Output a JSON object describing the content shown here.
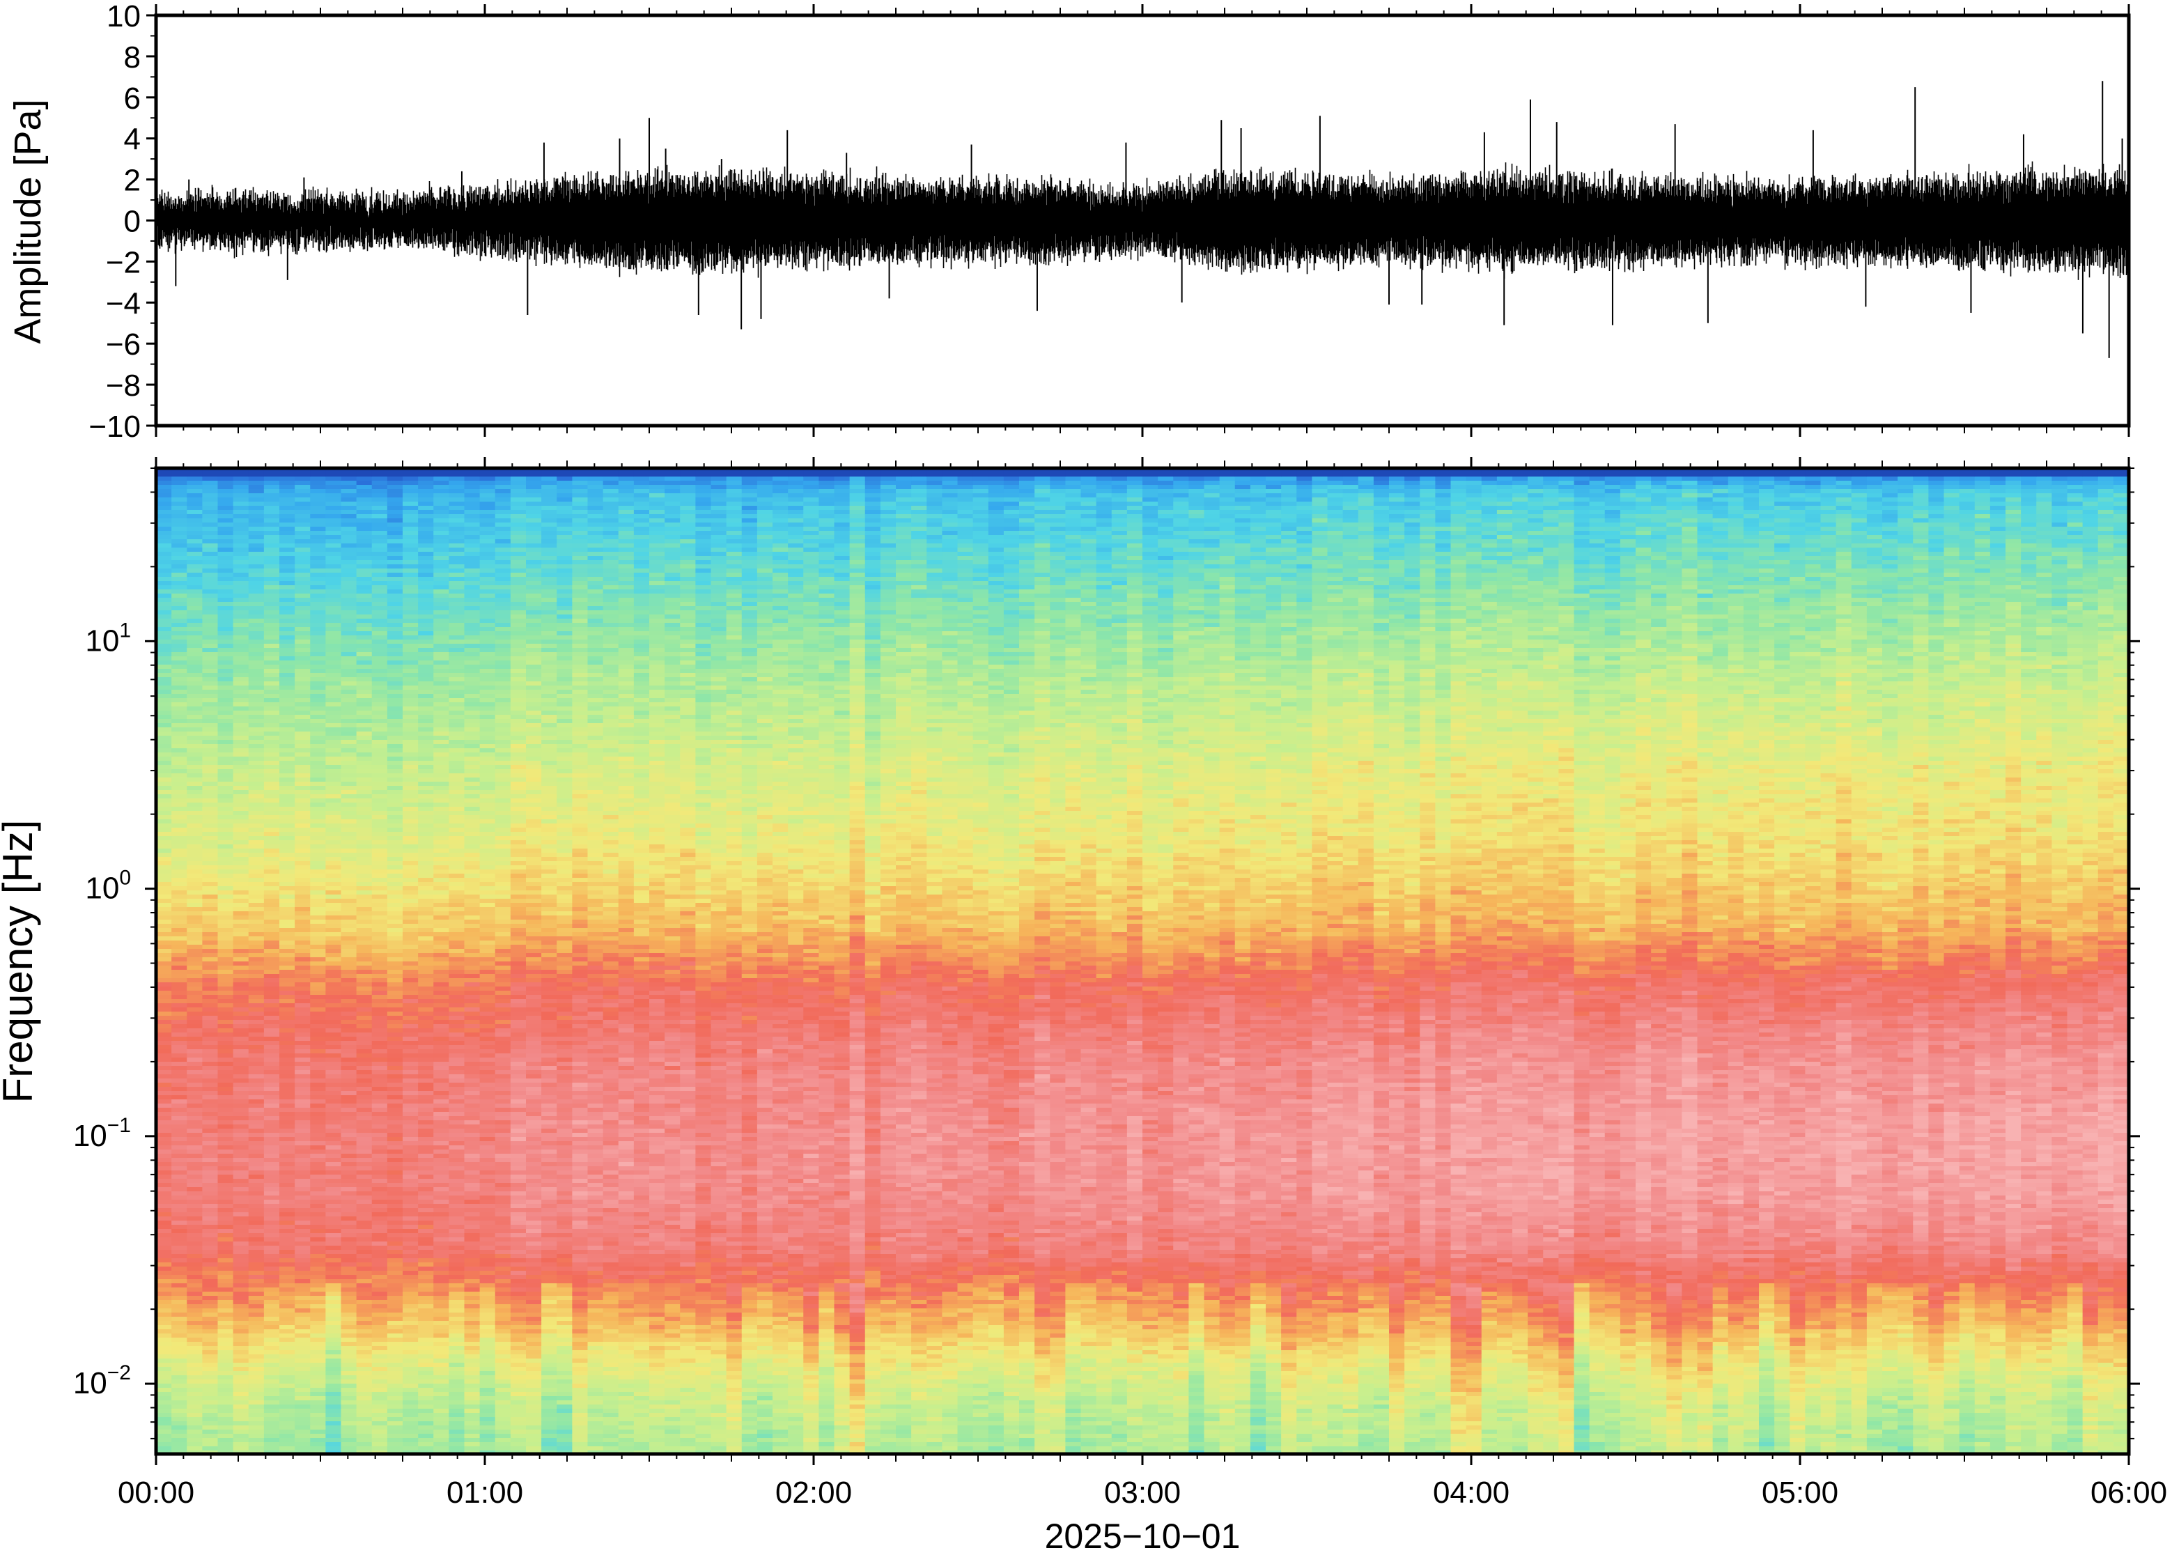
{
  "chart_data": [
    {
      "type": "line",
      "panel": "waveform",
      "ylabel": "Amplitude [Pa]",
      "ylim": [
        -10,
        10
      ],
      "yticks": [
        "10",
        "8",
        "6",
        "4",
        "2",
        "0",
        "−2",
        "−4",
        "−6",
        "−8",
        "−10"
      ],
      "ytick_values": [
        10,
        8,
        6,
        4,
        2,
        0,
        -2,
        -4,
        -6,
        -8,
        -10
      ],
      "xlim": [
        "00:00",
        "06:00"
      ],
      "line_color": "#000000",
      "envelope": {
        "x_hours": [
          0.0,
          0.25,
          0.5,
          0.75,
          1.0,
          1.25,
          1.5,
          1.75,
          2.0,
          2.25,
          2.5,
          2.75,
          3.0,
          3.25,
          3.5,
          3.75,
          4.0,
          4.25,
          4.5,
          4.75,
          5.0,
          5.25,
          5.5,
          5.75,
          6.0
        ],
        "upper": [
          1.2,
          1.3,
          1.3,
          1.2,
          1.6,
          2.1,
          2.4,
          2.3,
          2.2,
          2.1,
          2.0,
          1.9,
          1.6,
          2.4,
          2.3,
          2.0,
          2.4,
          2.3,
          2.2,
          2.0,
          2.0,
          2.1,
          2.2,
          2.4,
          2.6
        ],
        "lower": [
          -1.2,
          -1.3,
          -1.3,
          -1.2,
          -1.6,
          -2.1,
          -2.4,
          -2.4,
          -2.2,
          -2.1,
          -2.0,
          -1.9,
          -1.6,
          -2.4,
          -2.3,
          -2.0,
          -2.4,
          -2.3,
          -2.2,
          -2.0,
          -2.0,
          -2.1,
          -2.2,
          -2.4,
          -2.6
        ]
      },
      "spikes": [
        {
          "t": 0.06,
          "v": -3.2
        },
        {
          "t": 0.1,
          "v": 2.0
        },
        {
          "t": 0.4,
          "v": -2.9
        },
        {
          "t": 0.45,
          "v": 2.1
        },
        {
          "t": 0.93,
          "v": 2.4
        },
        {
          "t": 1.13,
          "v": -4.6
        },
        {
          "t": 1.18,
          "v": 3.8
        },
        {
          "t": 1.41,
          "v": 4.0
        },
        {
          "t": 1.5,
          "v": 5.0
        },
        {
          "t": 1.55,
          "v": 3.5
        },
        {
          "t": 1.65,
          "v": -4.6
        },
        {
          "t": 1.72,
          "v": 3.0
        },
        {
          "t": 1.78,
          "v": -5.3
        },
        {
          "t": 1.84,
          "v": -4.8
        },
        {
          "t": 1.92,
          "v": 4.4
        },
        {
          "t": 2.1,
          "v": 3.3
        },
        {
          "t": 2.23,
          "v": -3.8
        },
        {
          "t": 2.48,
          "v": 3.7
        },
        {
          "t": 2.68,
          "v": -4.4
        },
        {
          "t": 2.95,
          "v": 3.8
        },
        {
          "t": 3.12,
          "v": -4.0
        },
        {
          "t": 3.24,
          "v": 4.9
        },
        {
          "t": 3.3,
          "v": 4.5
        },
        {
          "t": 3.54,
          "v": 5.1
        },
        {
          "t": 3.75,
          "v": -4.1
        },
        {
          "t": 3.85,
          "v": -4.1
        },
        {
          "t": 4.04,
          "v": 4.3
        },
        {
          "t": 4.1,
          "v": -5.1
        },
        {
          "t": 4.18,
          "v": 5.9
        },
        {
          "t": 4.26,
          "v": 4.8
        },
        {
          "t": 4.43,
          "v": -5.1
        },
        {
          "t": 4.62,
          "v": 4.7
        },
        {
          "t": 4.72,
          "v": -5.0
        },
        {
          "t": 5.04,
          "v": 4.4
        },
        {
          "t": 5.2,
          "v": -4.2
        },
        {
          "t": 5.35,
          "v": 6.5
        },
        {
          "t": 5.52,
          "v": -4.5
        },
        {
          "t": 5.68,
          "v": 4.2
        },
        {
          "t": 5.86,
          "v": -5.5
        },
        {
          "t": 5.92,
          "v": 6.8
        },
        {
          "t": 5.94,
          "v": -6.7
        },
        {
          "t": 5.98,
          "v": 4.0
        }
      ]
    },
    {
      "type": "heatmap",
      "panel": "spectrogram",
      "ylabel": "Frequency [Hz]",
      "yscale": "log",
      "ylim": [
        0.0052,
        50
      ],
      "yticks": [
        {
          "value": 0.01,
          "base": "10",
          "exp": "−2"
        },
        {
          "value": 0.1,
          "base": "10",
          "exp": "−1"
        },
        {
          "value": 1,
          "base": "10",
          "exp": "0"
        },
        {
          "value": 10,
          "base": "10",
          "exp": "1"
        }
      ],
      "xlabel": "2025−10−01",
      "xticks": [
        "00:00",
        "01:00",
        "02:00",
        "03:00",
        "04:00",
        "05:00",
        "06:00"
      ],
      "xlim": [
        "00:00",
        "06:00"
      ],
      "colormap": [
        "#1b3fae",
        "#2a6fd9",
        "#35a8ee",
        "#4fd4e6",
        "#8ee6a8",
        "#c8ef8e",
        "#f2e979",
        "#f6b45a",
        "#f26a5a",
        "#f28a8a",
        "#f8b2b2"
      ],
      "profile": {
        "freq_hz": [
          0.0052,
          0.008,
          0.012,
          0.018,
          0.025,
          0.035,
          0.06,
          0.1,
          0.2,
          0.4,
          0.7,
          1.5,
          3,
          8,
          20,
          40,
          50
        ],
        "level_early": [
          4.6,
          5.0,
          5.8,
          7.0,
          7.8,
          8.6,
          8.9,
          8.9,
          8.7,
          8.0,
          6.8,
          5.8,
          5.2,
          4.3,
          3.2,
          2.4,
          1.0
        ],
        "level_late": [
          4.6,
          5.0,
          5.8,
          7.0,
          7.8,
          8.8,
          9.5,
          9.6,
          9.2,
          8.3,
          6.9,
          6.1,
          5.8,
          4.8,
          3.7,
          2.8,
          1.0
        ]
      },
      "time_shift": [
        {
          "hours": [
            0.0,
            0.95
          ],
          "offset": -0.3
        },
        {
          "hours": [
            0.95,
            3.12
          ],
          "offset": 0.0
        },
        {
          "hours": [
            3.12,
            6.0
          ],
          "offset": 0.15
        }
      ]
    }
  ]
}
